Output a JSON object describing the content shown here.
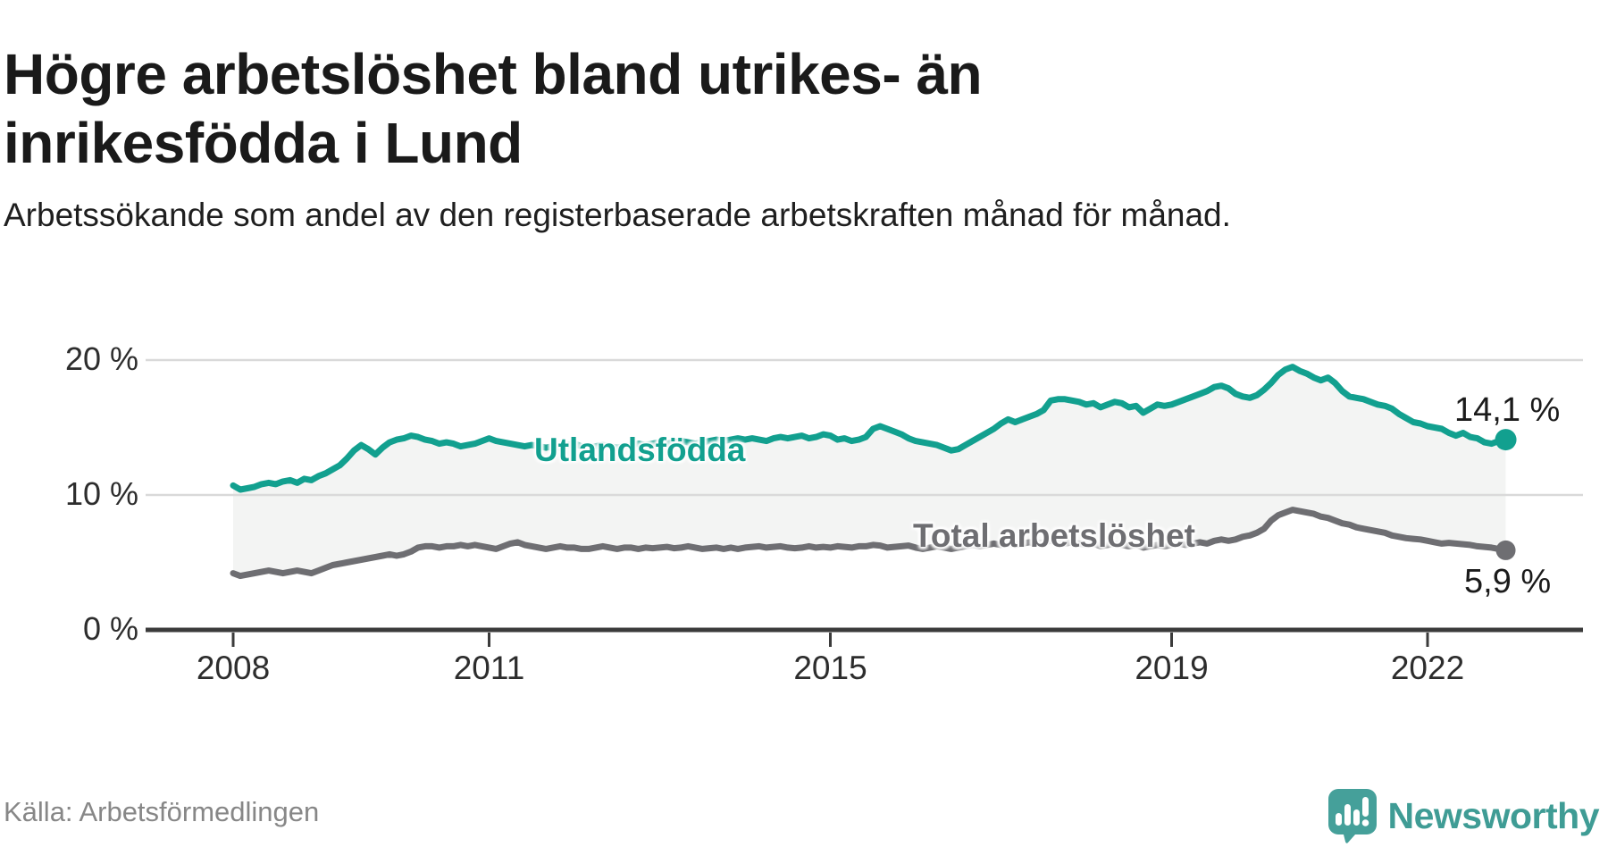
{
  "header": {
    "title": "Högre arbetslöshet bland utrikes- än inrikesfödda i Lund",
    "subtitle": "Arbetssökande som andel av den registerbaserade arbetskraften månad för månad."
  },
  "footer": {
    "source": "Källa: Arbetsförmedlingen",
    "brand": "Newsworthy"
  },
  "colors": {
    "accent_teal": "#12a08f",
    "line_gray": "#6e6e72",
    "fill_between": "#f3f4f3",
    "gridline": "#d9d9d9",
    "axis": "#3b3b3b",
    "text_dark": "#1a1a1a",
    "source_gray": "#878787",
    "brand_teal": "#3f9c95"
  },
  "chart_data": {
    "type": "line",
    "title": "Högre arbetslöshet bland utrikes- än inrikesfödda i Lund",
    "subtitle": "Arbetssökande som andel av den registerbaserade arbetskraften månad för månad.",
    "unit": "%",
    "x_start_year": 2008,
    "x_step_months": 1,
    "x_end": "2022-12",
    "xlim": [
      2007.0,
      2023.3
    ],
    "ylim": [
      0,
      21.5
    ],
    "grid": "horizontal",
    "legend_position": "inline-labels",
    "x_ticks": [
      {
        "v": 2008,
        "label": "2008"
      },
      {
        "v": 2011,
        "label": "2011"
      },
      {
        "v": 2015,
        "label": "2015"
      },
      {
        "v": 2019,
        "label": "2019"
      },
      {
        "v": 2022,
        "label": "2022"
      }
    ],
    "y_ticks": [
      {
        "v": 0,
        "label": "0 %"
      },
      {
        "v": 10,
        "label": "10 %"
      },
      {
        "v": 20,
        "label": "20 %"
      }
    ],
    "series": [
      {
        "name": "Utlandsfödda",
        "color": "#12a08f",
        "end_label": "14,1 %",
        "end_value": 14.1,
        "values": [
          10.7,
          10.4,
          10.5,
          10.6,
          10.8,
          10.9,
          10.8,
          11.0,
          11.1,
          10.9,
          11.2,
          11.1,
          11.4,
          11.6,
          11.9,
          12.2,
          12.7,
          13.3,
          13.7,
          13.4,
          13.0,
          13.5,
          13.9,
          14.1,
          14.2,
          14.4,
          14.3,
          14.1,
          14.0,
          13.8,
          13.9,
          13.8,
          13.6,
          13.7,
          13.8,
          14.0,
          14.2,
          14.0,
          13.9,
          13.8,
          13.7,
          13.6,
          13.7,
          13.6,
          13.5,
          13.6,
          13.5,
          13.7,
          13.8,
          13.6,
          13.5,
          13.6,
          13.7,
          13.6,
          13.5,
          13.6,
          13.7,
          13.8,
          13.7,
          13.8,
          13.9,
          13.8,
          13.9,
          14.0,
          13.9,
          13.8,
          13.9,
          14.0,
          14.1,
          14.0,
          14.1,
          14.2,
          14.1,
          14.2,
          14.1,
          14.0,
          14.2,
          14.3,
          14.2,
          14.3,
          14.4,
          14.2,
          14.3,
          14.5,
          14.4,
          14.1,
          14.2,
          14.0,
          14.1,
          14.3,
          14.9,
          15.1,
          14.9,
          14.7,
          14.5,
          14.2,
          14.0,
          13.9,
          13.8,
          13.7,
          13.5,
          13.3,
          13.4,
          13.7,
          14.0,
          14.3,
          14.6,
          14.9,
          15.3,
          15.6,
          15.4,
          15.6,
          15.8,
          16.0,
          16.3,
          17.0,
          17.1,
          17.1,
          17.0,
          16.9,
          16.7,
          16.8,
          16.5,
          16.7,
          16.9,
          16.8,
          16.5,
          16.6,
          16.1,
          16.4,
          16.7,
          16.6,
          16.7,
          16.9,
          17.1,
          17.3,
          17.5,
          17.7,
          18.0,
          18.1,
          17.9,
          17.5,
          17.3,
          17.2,
          17.4,
          17.8,
          18.3,
          18.9,
          19.3,
          19.5,
          19.2,
          19.0,
          18.7,
          18.5,
          18.7,
          18.3,
          17.7,
          17.3,
          17.2,
          17.1,
          16.9,
          16.7,
          16.6,
          16.4,
          16.0,
          15.7,
          15.4,
          15.3,
          15.1,
          15.0,
          14.9,
          14.6,
          14.4,
          14.6,
          14.3,
          14.2,
          13.9,
          13.8,
          14.0,
          14.1
        ]
      },
      {
        "name": "Total arbetslöshet",
        "color": "#6e6e72",
        "end_label": "5,9 %",
        "end_value": 5.9,
        "values": [
          4.2,
          4.0,
          4.1,
          4.2,
          4.3,
          4.4,
          4.3,
          4.2,
          4.3,
          4.4,
          4.3,
          4.2,
          4.4,
          4.6,
          4.8,
          4.9,
          5.0,
          5.1,
          5.2,
          5.3,
          5.4,
          5.5,
          5.6,
          5.5,
          5.6,
          5.8,
          6.1,
          6.2,
          6.2,
          6.1,
          6.2,
          6.2,
          6.3,
          6.2,
          6.3,
          6.2,
          6.1,
          6.0,
          6.2,
          6.4,
          6.5,
          6.3,
          6.2,
          6.1,
          6.0,
          6.1,
          6.2,
          6.1,
          6.1,
          6.0,
          6.0,
          6.1,
          6.2,
          6.1,
          6.0,
          6.1,
          6.1,
          6.0,
          6.1,
          6.05,
          6.1,
          6.15,
          6.05,
          6.1,
          6.2,
          6.1,
          6.0,
          6.05,
          6.1,
          6.0,
          6.1,
          6.0,
          6.1,
          6.15,
          6.2,
          6.1,
          6.15,
          6.2,
          6.1,
          6.05,
          6.1,
          6.2,
          6.1,
          6.15,
          6.1,
          6.2,
          6.15,
          6.1,
          6.2,
          6.2,
          6.3,
          6.25,
          6.1,
          6.15,
          6.2,
          6.25,
          6.1,
          6.0,
          6.1,
          6.2,
          6.1,
          6.0,
          6.1,
          6.2,
          6.3,
          6.2,
          6.3,
          6.4,
          6.3,
          6.4,
          6.3,
          6.4,
          6.5,
          6.4,
          6.5,
          6.6,
          6.5,
          6.4,
          6.5,
          6.4,
          6.3,
          6.4,
          6.2,
          6.3,
          6.4,
          6.3,
          6.2,
          6.3,
          6.1,
          6.2,
          6.3,
          6.2,
          6.3,
          6.4,
          6.3,
          6.4,
          6.5,
          6.4,
          6.6,
          6.7,
          6.6,
          6.7,
          6.9,
          7.0,
          7.2,
          7.5,
          8.1,
          8.5,
          8.7,
          8.9,
          8.8,
          8.7,
          8.6,
          8.4,
          8.3,
          8.1,
          7.9,
          7.8,
          7.6,
          7.5,
          7.4,
          7.3,
          7.2,
          7.0,
          6.9,
          6.8,
          6.75,
          6.7,
          6.6,
          6.5,
          6.4,
          6.45,
          6.4,
          6.35,
          6.3,
          6.2,
          6.15,
          6.1,
          6.0,
          5.9
        ]
      }
    ]
  }
}
